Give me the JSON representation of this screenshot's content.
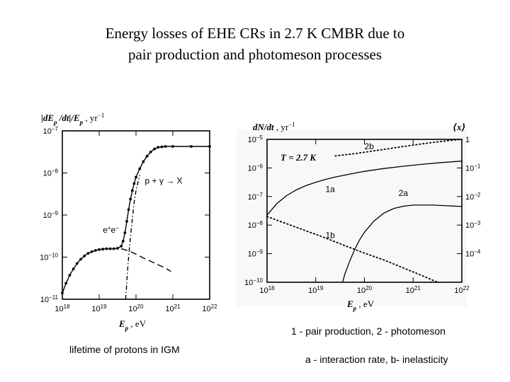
{
  "slide": {
    "title_line1": "Energy losses of EHE CRs in 2.7 K CMBR due to",
    "title_line2": "pair production and photomeson processes",
    "caption_left": "lifetime of protons in IGM",
    "caption_right1": "1 - pair production, 2 - photomeson",
    "caption_right2": "a - interaction rate, b- inelasticity"
  },
  "chart_data": [
    {
      "type": "line",
      "panel": "left",
      "ylabel_main": "|dE",
      "ylabel_sub": "p",
      "ylabel_mid": " /dt|/E",
      "ylabel_sub2": "p",
      "ylabel_unit": " ,  yr",
      "ylabel_unit_exp": "−1",
      "xlabel_main": "E",
      "xlabel_sub": "p",
      "xlabel_unit": " ,  eV",
      "xscale": "log",
      "yscale": "log",
      "xlim": [
        18,
        22
      ],
      "ylim": [
        -11,
        -7
      ],
      "xticks": [
        {
          "exp": 18,
          "base": "10",
          "sup": "18"
        },
        {
          "exp": 19,
          "base": "10",
          "sup": "19"
        },
        {
          "exp": 20,
          "base": "10",
          "sup": "20"
        },
        {
          "exp": 21,
          "base": "10",
          "sup": "21"
        },
        {
          "exp": 22,
          "base": "10",
          "sup": "22"
        }
      ],
      "yticks": [
        {
          "exp": -7,
          "base": "10",
          "sup": "−7"
        },
        {
          "exp": -8,
          "base": "10",
          "sup": "−8"
        },
        {
          "exp": -9,
          "base": "10",
          "sup": "−9"
        },
        {
          "exp": -10,
          "base": "10",
          "sup": "−10"
        },
        {
          "exp": -11,
          "base": "10",
          "sup": "−11"
        }
      ],
      "series": [
        {
          "name": "total",
          "style": "solid-dotted",
          "points": [
            [
              18.0,
              -10.85
            ],
            [
              18.1,
              -10.62
            ],
            [
              18.2,
              -10.43
            ],
            [
              18.3,
              -10.28
            ],
            [
              18.4,
              -10.15
            ],
            [
              18.5,
              -10.05
            ],
            [
              18.6,
              -9.97
            ],
            [
              18.7,
              -9.91
            ],
            [
              18.8,
              -9.87
            ],
            [
              18.9,
              -9.84
            ],
            [
              19.0,
              -9.82
            ],
            [
              19.1,
              -9.81
            ],
            [
              19.2,
              -9.8
            ],
            [
              19.3,
              -9.8
            ],
            [
              19.4,
              -9.8
            ],
            [
              19.5,
              -9.79
            ],
            [
              19.6,
              -9.74
            ],
            [
              19.65,
              -9.62
            ],
            [
              19.7,
              -9.42
            ],
            [
              19.75,
              -9.15
            ],
            [
              19.8,
              -8.87
            ],
            [
              19.85,
              -8.62
            ],
            [
              19.9,
              -8.42
            ],
            [
              19.95,
              -8.25
            ],
            [
              20.0,
              -8.1
            ],
            [
              20.1,
              -7.9
            ],
            [
              20.2,
              -7.73
            ],
            [
              20.3,
              -7.6
            ],
            [
              20.4,
              -7.5
            ],
            [
              20.5,
              -7.43
            ],
            [
              20.6,
              -7.39
            ],
            [
              20.7,
              -7.38
            ],
            [
              20.8,
              -7.37
            ],
            [
              21.0,
              -7.37
            ],
            [
              21.5,
              -7.37
            ],
            [
              22.0,
              -7.37
            ]
          ]
        },
        {
          "name": "pair production (e+e-)",
          "style": "dashed",
          "points": [
            [
              19.6,
              -9.8
            ],
            [
              19.8,
              -9.85
            ],
            [
              20.0,
              -9.93
            ],
            [
              20.2,
              -10.02
            ],
            [
              20.4,
              -10.1
            ],
            [
              20.6,
              -10.18
            ],
            [
              20.8,
              -10.26
            ],
            [
              20.95,
              -10.34
            ]
          ]
        },
        {
          "name": "photomeson (p + γ → X)",
          "style": "dashdot",
          "points": [
            [
              19.72,
              -11.0
            ],
            [
              19.75,
              -10.6
            ],
            [
              19.78,
              -10.2
            ],
            [
              19.82,
              -9.8
            ],
            [
              19.88,
              -9.25
            ],
            [
              19.95,
              -8.7
            ],
            [
              20.0,
              -8.42
            ],
            [
              20.1,
              -8.05
            ]
          ]
        }
      ],
      "annotations": [
        {
          "text": "p + γ → X",
          "at": [
            20.75,
            -8.25
          ]
        },
        {
          "text_main": "e",
          "text_sup": "+",
          "text_main2": "e",
          "text_sup2": "−",
          "at": [
            19.1,
            -9.42
          ]
        }
      ]
    },
    {
      "type": "line",
      "panel": "right",
      "ylabel_left_main": "dN/dt",
      "ylabel_left_unit": " ,  yr",
      "ylabel_left_exp": "−1",
      "ylabel_right": "⟨x⟩",
      "xlabel_main": "E",
      "xlabel_sub": "p",
      "xlabel_unit": " ,  eV",
      "xscale": "log",
      "yscale": "log",
      "xlim": [
        18,
        22
      ],
      "ylim_left": [
        -10,
        -5
      ],
      "ylim_right": [
        -5,
        0
      ],
      "xticks": [
        {
          "exp": 18,
          "base": "10",
          "sup": "18"
        },
        {
          "exp": 19,
          "base": "10",
          "sup": "19"
        },
        {
          "exp": 20,
          "base": "10",
          "sup": "20"
        },
        {
          "exp": 21,
          "base": "10",
          "sup": "21"
        },
        {
          "exp": 22,
          "base": "10",
          "sup": "22"
        }
      ],
      "yticks_left": [
        {
          "exp": -5,
          "base": "10",
          "sup": "−5"
        },
        {
          "exp": -6,
          "base": "10",
          "sup": "−6"
        },
        {
          "exp": -7,
          "base": "10",
          "sup": "−7"
        },
        {
          "exp": -8,
          "base": "10",
          "sup": "−8"
        },
        {
          "exp": -9,
          "base": "10",
          "sup": "−9"
        },
        {
          "exp": -10,
          "base": "10",
          "sup": "−10"
        }
      ],
      "yticks_right": [
        {
          "exp": 0,
          "base": "1",
          "sup": ""
        },
        {
          "exp": -1,
          "base": "10",
          "sup": "−1"
        },
        {
          "exp": -2,
          "base": "10",
          "sup": "−2"
        },
        {
          "exp": -3,
          "base": "10",
          "sup": "−3"
        },
        {
          "exp": -4,
          "base": "10",
          "sup": "−4"
        }
      ],
      "temperature_label": "T = 2.7 K",
      "series": [
        {
          "name": "1a",
          "style": "solid",
          "axis": "left",
          "points": [
            [
              18.0,
              -7.65
            ],
            [
              18.2,
              -7.25
            ],
            [
              18.4,
              -6.97
            ],
            [
              18.6,
              -6.77
            ],
            [
              18.8,
              -6.62
            ],
            [
              19.0,
              -6.5
            ],
            [
              19.2,
              -6.4
            ],
            [
              19.4,
              -6.32
            ],
            [
              19.6,
              -6.25
            ],
            [
              19.8,
              -6.18
            ],
            [
              20.0,
              -6.12
            ],
            [
              20.4,
              -6.02
            ],
            [
              20.8,
              -5.94
            ],
            [
              21.2,
              -5.87
            ],
            [
              21.6,
              -5.81
            ],
            [
              22.0,
              -5.76
            ]
          ]
        },
        {
          "name": "2b",
          "style": "dotted",
          "axis": "right",
          "points": [
            [
              19.4,
              -0.58
            ],
            [
              19.8,
              -0.5
            ],
            [
              20.2,
              -0.4
            ],
            [
              20.6,
              -0.3
            ],
            [
              21.0,
              -0.2
            ],
            [
              21.4,
              -0.11
            ],
            [
              21.8,
              -0.03
            ],
            [
              22.0,
              0.0
            ]
          ]
        },
        {
          "name": "2a",
          "style": "solid",
          "axis": "left",
          "points": [
            [
              19.55,
              -10.0
            ],
            [
              19.6,
              -9.7
            ],
            [
              19.7,
              -9.25
            ],
            [
              19.8,
              -8.85
            ],
            [
              19.9,
              -8.52
            ],
            [
              20.0,
              -8.25
            ],
            [
              20.2,
              -7.85
            ],
            [
              20.4,
              -7.58
            ],
            [
              20.6,
              -7.42
            ],
            [
              20.8,
              -7.34
            ],
            [
              21.0,
              -7.3
            ],
            [
              21.4,
              -7.3
            ],
            [
              22.0,
              -7.35
            ]
          ]
        },
        {
          "name": "1b",
          "style": "dotted",
          "axis": "right",
          "points": [
            [
              18.0,
              -2.7
            ],
            [
              18.4,
              -2.95
            ],
            [
              18.8,
              -3.2
            ],
            [
              19.2,
              -3.45
            ],
            [
              19.6,
              -3.72
            ],
            [
              20.0,
              -3.98
            ],
            [
              20.4,
              -4.22
            ],
            [
              20.8,
              -4.5
            ],
            [
              21.2,
              -4.78
            ],
            [
              21.5,
              -5.0
            ]
          ]
        }
      ],
      "annotations": [
        {
          "text": "2b",
          "at": [
            20.0,
            -5.35
          ]
        },
        {
          "text": "1a",
          "at": [
            19.2,
            -6.85
          ]
        },
        {
          "text": "2a",
          "at": [
            20.7,
            -6.98
          ]
        },
        {
          "text": "1b",
          "at": [
            19.2,
            -8.45
          ]
        }
      ]
    }
  ]
}
